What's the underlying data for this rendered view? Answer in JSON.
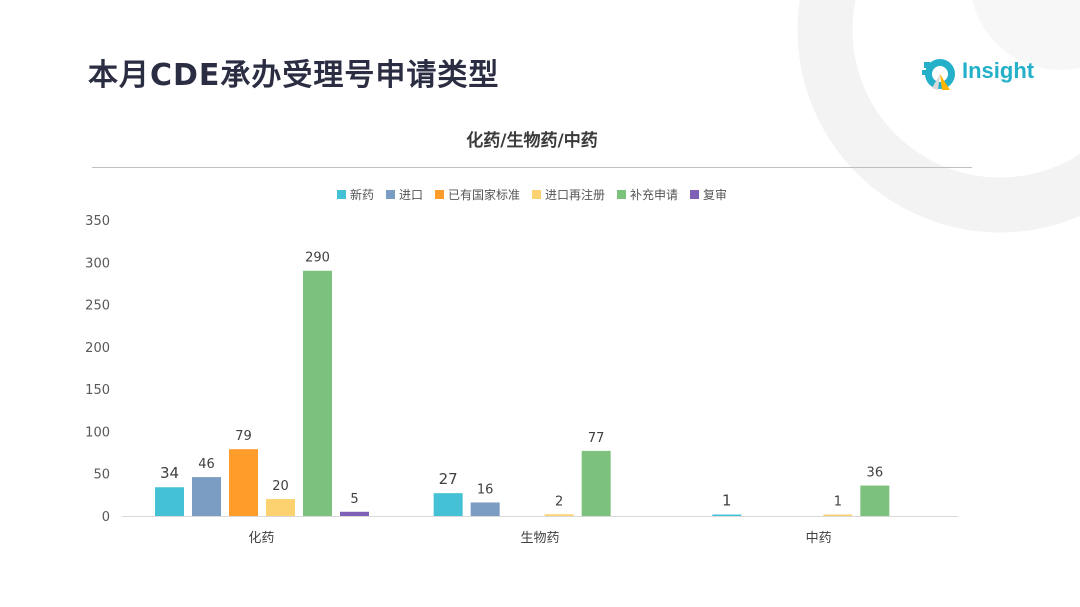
{
  "title": "本月CDE承办受理号申请类型",
  "logo": {
    "text": "Insight"
  },
  "colors": {
    "新药": "#45c1d6",
    "进口": "#7b9cc3",
    "已有国家标准": "#ff9c2a",
    "进口再注册": "#fbd26f",
    "补充申请": "#7cc27c",
    "复审": "#7e60b6"
  },
  "chart_data": {
    "type": "bar",
    "title": "化药/生物药/中药",
    "categories": [
      "化药",
      "生物药",
      "中药"
    ],
    "series": [
      {
        "name": "新药",
        "values": [
          34,
          27,
          1
        ]
      },
      {
        "name": "进口",
        "values": [
          46,
          16,
          null
        ]
      },
      {
        "name": "已有国家标准",
        "values": [
          79,
          null,
          null
        ]
      },
      {
        "name": "进口再注册",
        "values": [
          20,
          2,
          1
        ]
      },
      {
        "name": "补充申请",
        "values": [
          290,
          77,
          36
        ]
      },
      {
        "name": "复审",
        "values": [
          5,
          null,
          null
        ]
      }
    ],
    "ylim": [
      0,
      350
    ],
    "yticks": [
      0,
      50,
      100,
      150,
      200,
      250,
      300,
      350
    ],
    "grid": false,
    "legend": "top-center"
  }
}
